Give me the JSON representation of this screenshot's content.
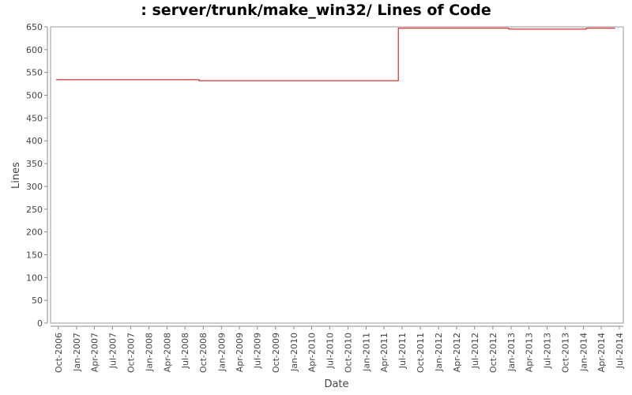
{
  "chart_data": {
    "type": "line",
    "title": ": server/trunk/make_win32/ Lines of Code",
    "xlabel": "Date",
    "ylabel": "Lines",
    "ylim": [
      0,
      650
    ],
    "yticks": [
      0,
      50,
      100,
      150,
      200,
      250,
      300,
      350,
      400,
      450,
      500,
      550,
      600,
      650
    ],
    "xlim": [
      "2006-08-23",
      "2014-07-21"
    ],
    "xticks": [
      "Oct-2006",
      "Jan-2007",
      "Apr-2007",
      "Jul-2007",
      "Oct-2007",
      "Jan-2008",
      "Apr-2008",
      "Jul-2008",
      "Oct-2008",
      "Jan-2009",
      "Apr-2009",
      "Jul-2009",
      "Oct-2009",
      "Jan-2010",
      "Apr-2010",
      "Jul-2010",
      "Oct-2010",
      "Jan-2011",
      "Apr-2011",
      "Jul-2011",
      "Oct-2011",
      "Jan-2012",
      "Apr-2012",
      "Jul-2012",
      "Oct-2012",
      "Jan-2013",
      "Apr-2013",
      "Jul-2013",
      "Oct-2013",
      "Jan-2014",
      "Apr-2014",
      "Jul-2014"
    ],
    "grid": false,
    "line_color": "#cc0000",
    "series": [
      {
        "points": [
          {
            "x": "2006-09-20",
            "y": 534
          },
          {
            "x": "2008-09-10",
            "y": 534
          },
          {
            "x": "2008-09-10",
            "y": 532
          },
          {
            "x": "2011-06-12",
            "y": 532
          },
          {
            "x": "2011-06-12",
            "y": 647
          },
          {
            "x": "2012-12-20",
            "y": 647
          },
          {
            "x": "2012-12-20",
            "y": 645
          },
          {
            "x": "2014-01-15",
            "y": 645
          },
          {
            "x": "2014-01-15",
            "y": 647
          },
          {
            "x": "2014-06-10",
            "y": 647
          }
        ]
      }
    ]
  }
}
